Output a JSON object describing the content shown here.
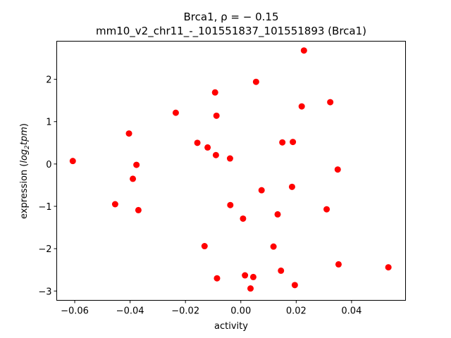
{
  "chart_data": {
    "type": "scatter",
    "title_line1": "Brca1, ρ = − 0.15",
    "title_line2": "mm10_v2_chr11_-_101551837_101551893 (Brca1)",
    "xlabel": "activity",
    "ylabel_prefix": "expression (",
    "ylabel_math": "log",
    "ylabel_sub": "2",
    "ylabel_math2": "tpm",
    "ylabel_suffix": ")",
    "xlim": [
      -0.0665,
      0.0595
    ],
    "ylim": [
      -3.22,
      2.9
    ],
    "grid": false,
    "legend": "none",
    "marker_color": "#ff0000",
    "xticks": [
      {
        "value": -0.06,
        "label": "−0.06"
      },
      {
        "value": -0.04,
        "label": "−0.04"
      },
      {
        "value": -0.02,
        "label": "−0.02"
      },
      {
        "value": 0.0,
        "label": "0.00"
      },
      {
        "value": 0.02,
        "label": "0.02"
      },
      {
        "value": 0.04,
        "label": "0.04"
      }
    ],
    "yticks": [
      {
        "value": -3,
        "label": "−3"
      },
      {
        "value": -2,
        "label": "−2"
      },
      {
        "value": -1,
        "label": "−1"
      },
      {
        "value": 0,
        "label": "0"
      },
      {
        "value": 1,
        "label": "1"
      },
      {
        "value": 2,
        "label": "2"
      }
    ],
    "points": [
      {
        "x": -0.0607,
        "y": 0.07
      },
      {
        "x": -0.0454,
        "y": -0.95
      },
      {
        "x": -0.0404,
        "y": 0.72
      },
      {
        "x": -0.039,
        "y": -0.35
      },
      {
        "x": -0.0377,
        "y": -0.02
      },
      {
        "x": -0.037,
        "y": -1.09
      },
      {
        "x": -0.0235,
        "y": 1.21
      },
      {
        "x": -0.0157,
        "y": 0.5
      },
      {
        "x": -0.0131,
        "y": -1.94
      },
      {
        "x": -0.012,
        "y": 0.39
      },
      {
        "x": -0.0093,
        "y": 1.69
      },
      {
        "x": -0.009,
        "y": 0.21
      },
      {
        "x": -0.0088,
        "y": 1.14
      },
      {
        "x": -0.0086,
        "y": -2.7
      },
      {
        "x": -0.0039,
        "y": 0.13
      },
      {
        "x": -0.0038,
        "y": -0.97
      },
      {
        "x": 0.0008,
        "y": -1.29
      },
      {
        "x": 0.0015,
        "y": -2.63
      },
      {
        "x": 0.0035,
        "y": -2.94
      },
      {
        "x": 0.0045,
        "y": -2.67
      },
      {
        "x": 0.0055,
        "y": 1.94
      },
      {
        "x": 0.0075,
        "y": -0.62
      },
      {
        "x": 0.0118,
        "y": -1.95
      },
      {
        "x": 0.0133,
        "y": -1.19
      },
      {
        "x": 0.0145,
        "y": -2.52
      },
      {
        "x": 0.015,
        "y": 0.51
      },
      {
        "x": 0.0185,
        "y": -0.54
      },
      {
        "x": 0.0188,
        "y": 0.52
      },
      {
        "x": 0.0195,
        "y": -2.86
      },
      {
        "x": 0.022,
        "y": 1.36
      },
      {
        "x": 0.0228,
        "y": 2.68
      },
      {
        "x": 0.031,
        "y": -1.07
      },
      {
        "x": 0.0323,
        "y": 1.46
      },
      {
        "x": 0.035,
        "y": -0.13
      },
      {
        "x": 0.0353,
        "y": -2.37
      },
      {
        "x": 0.0533,
        "y": -2.44
      }
    ]
  }
}
